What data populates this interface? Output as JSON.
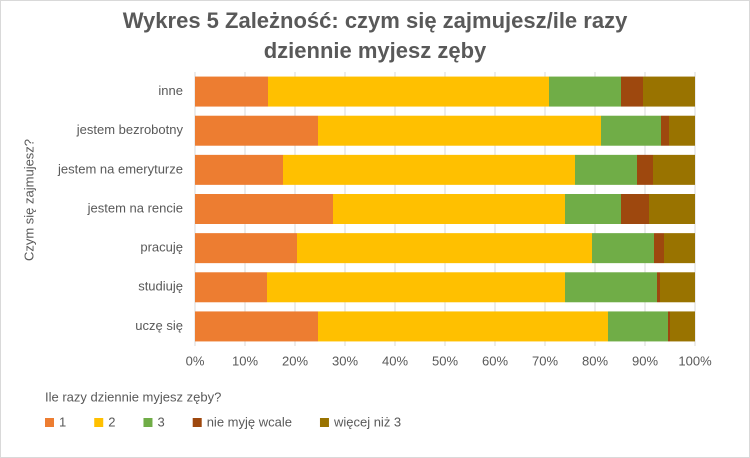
{
  "chart_data": {
    "type": "stacked-barh",
    "title": [
      "Wykres 5 Zależność: czym się zajmujesz/ile razy",
      "dziennie myjesz zęby"
    ],
    "y_label": "Czym się zajmujesz?",
    "legend_title": "Ile razy dziennie myjesz zęby?",
    "categories": [
      "inne",
      "jestem bezrobotny",
      "jestem na emeryturze",
      "jestem na rencie",
      "pracuję",
      "studiuję",
      "uczę się"
    ],
    "series": [
      {
        "name": "1",
        "color": "#ED7D31",
        "values": [
          14.6,
          24.6,
          17.6,
          27.6,
          20.4,
          14.4,
          24.6
        ]
      },
      {
        "name": "2",
        "color": "#FFC000",
        "values": [
          56.2,
          56.6,
          58.4,
          46.4,
          59,
          59.6,
          58
        ]
      },
      {
        "name": "3",
        "color": "#70AD47",
        "values": [
          14.4,
          12,
          12.4,
          11.2,
          12.4,
          18.4,
          12
        ]
      },
      {
        "name": "nie myję wcale",
        "color": "#9E480E",
        "values": [
          4.4,
          1.6,
          3.2,
          5.6,
          2,
          0.6,
          0.4
        ]
      },
      {
        "name": "więcej niż 3",
        "color": "#997300",
        "values": [
          10.4,
          5.2,
          8.4,
          9.2,
          6.2,
          7,
          5
        ]
      }
    ],
    "xlim": [
      0,
      100
    ],
    "xticks": [
      {
        "value": 0,
        "label": "0%"
      },
      {
        "value": 10,
        "label": "10%"
      },
      {
        "value": 20,
        "label": "20%"
      },
      {
        "value": 30,
        "label": "30%"
      },
      {
        "value": 40,
        "label": "40%"
      },
      {
        "value": 50,
        "label": "50%"
      },
      {
        "value": 60,
        "label": "60%"
      },
      {
        "value": 70,
        "label": "70%"
      },
      {
        "value": 80,
        "label": "80%"
      },
      {
        "value": 90,
        "label": "90%"
      },
      {
        "value": 100,
        "label": "100%"
      }
    ],
    "grid": true,
    "legend": "bottom-left"
  }
}
